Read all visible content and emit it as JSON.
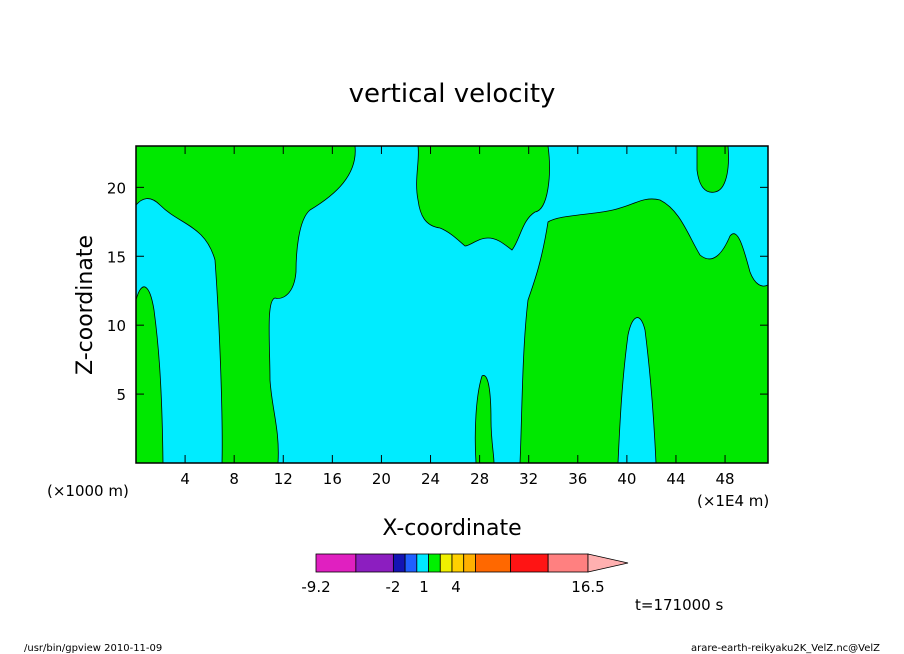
{
  "chart_data": {
    "type": "contour",
    "title": "vertical velocity",
    "xlabel": "X-coordinate",
    "ylabel": "Z-coordinate",
    "x_unit_left": "(×1000 m)",
    "x_unit_right": "(×1E4 m)",
    "x_ticks": [
      "4",
      "8",
      "12",
      "16",
      "20",
      "24",
      "28",
      "32",
      "36",
      "40",
      "44",
      "48"
    ],
    "y_ticks": [
      "5",
      "10",
      "15",
      "20"
    ],
    "xlim": [
      0,
      51.5
    ],
    "ylim": [
      0,
      23
    ],
    "time_label": "t=171000 s",
    "colorbar": {
      "labels": [
        "-9.2",
        "-2",
        "1",
        "4",
        "16.5"
      ],
      "label_values": [
        -9.2,
        -2,
        1,
        4,
        16.5
      ],
      "colors": [
        "#e020c0",
        "#8c1ec0",
        "#1414b4",
        "#2060ff",
        "#00e8ff",
        "#00f000",
        "#f0f000",
        "#ffd000",
        "#ffb000",
        "#ff6800",
        "#ff1414",
        "#ff8080",
        "#ffb0b0"
      ]
    },
    "regions": {
      "background": "#00ecff",
      "positive": "#00e800"
    }
  },
  "footer": {
    "left": "/usr/bin/gpview 2010-11-09",
    "right": "arare-earth-reikyaku2K_VelZ.nc@VelZ"
  }
}
